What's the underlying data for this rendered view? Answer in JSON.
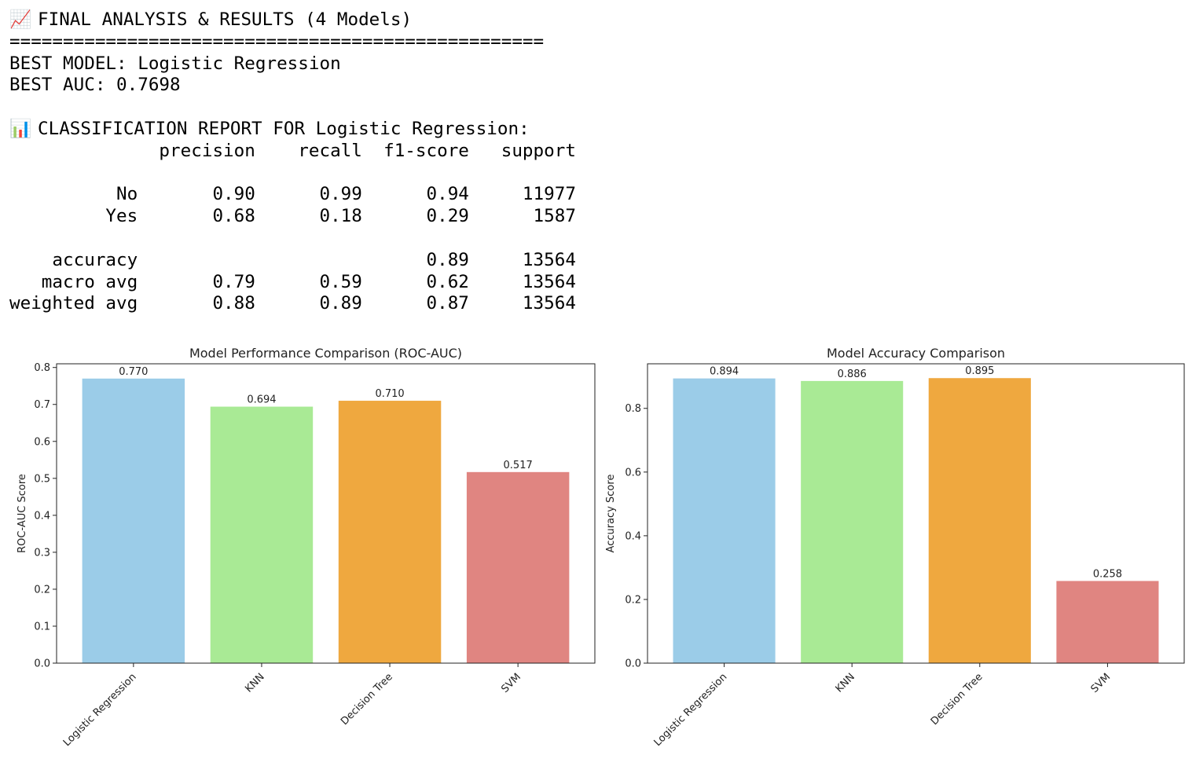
{
  "output": {
    "header_icon": "📈",
    "header_text": "FINAL ANALYSIS & RESULTS (4 Models)",
    "separator": "==================================================",
    "best_model_line": "BEST MODEL: Logistic Regression",
    "best_auc_line": "BEST AUC: 0.7698",
    "report_icon": "📊",
    "report_title": "CLASSIFICATION REPORT FOR Logistic Regression:",
    "report_header": "              precision    recall  f1-score   support",
    "report_rows": [
      "",
      "          No       0.90      0.99      0.94     11977",
      "         Yes       0.68      0.18      0.29      1587",
      "",
      "    accuracy                           0.89     13564",
      "   macro avg       0.79      0.59      0.62     13564",
      "weighted avg       0.88      0.89      0.87     13564"
    ]
  },
  "chart_data": [
    {
      "type": "bar",
      "title": "Model Performance Comparison (ROC-AUC)",
      "xlabel": "",
      "ylabel": "ROC-AUC Score",
      "categories": [
        "Logistic Regression",
        "KNN",
        "Decision Tree",
        "SVM"
      ],
      "values": [
        0.77,
        0.694,
        0.71,
        0.517
      ],
      "labels": [
        "0.770",
        "0.694",
        "0.710",
        "0.517"
      ],
      "colors": [
        "#9BCCE8",
        "#A9EA95",
        "#EFA83F",
        "#E08581"
      ],
      "ylim": [
        0,
        0.81
      ],
      "yticks": [
        0.0,
        0.1,
        0.2,
        0.3,
        0.4,
        0.5,
        0.6,
        0.7,
        0.8
      ],
      "ytick_labels": [
        "0.0",
        "0.1",
        "0.2",
        "0.3",
        "0.4",
        "0.5",
        "0.6",
        "0.7",
        "0.8"
      ],
      "grid": false
    },
    {
      "type": "bar",
      "title": "Model Accuracy Comparison",
      "xlabel": "",
      "ylabel": "Accuracy Score",
      "categories": [
        "Logistic Regression",
        "KNN",
        "Decision Tree",
        "SVM"
      ],
      "values": [
        0.894,
        0.886,
        0.895,
        0.258
      ],
      "labels": [
        "0.894",
        "0.886",
        "0.895",
        "0.258"
      ],
      "colors": [
        "#9BCCE8",
        "#A9EA95",
        "#EFA83F",
        "#E08581"
      ],
      "ylim": [
        0,
        0.94
      ],
      "yticks": [
        0.0,
        0.2,
        0.4,
        0.6,
        0.8
      ],
      "ytick_labels": [
        "0.0",
        "0.2",
        "0.4",
        "0.6",
        "0.8"
      ],
      "grid": false
    }
  ]
}
